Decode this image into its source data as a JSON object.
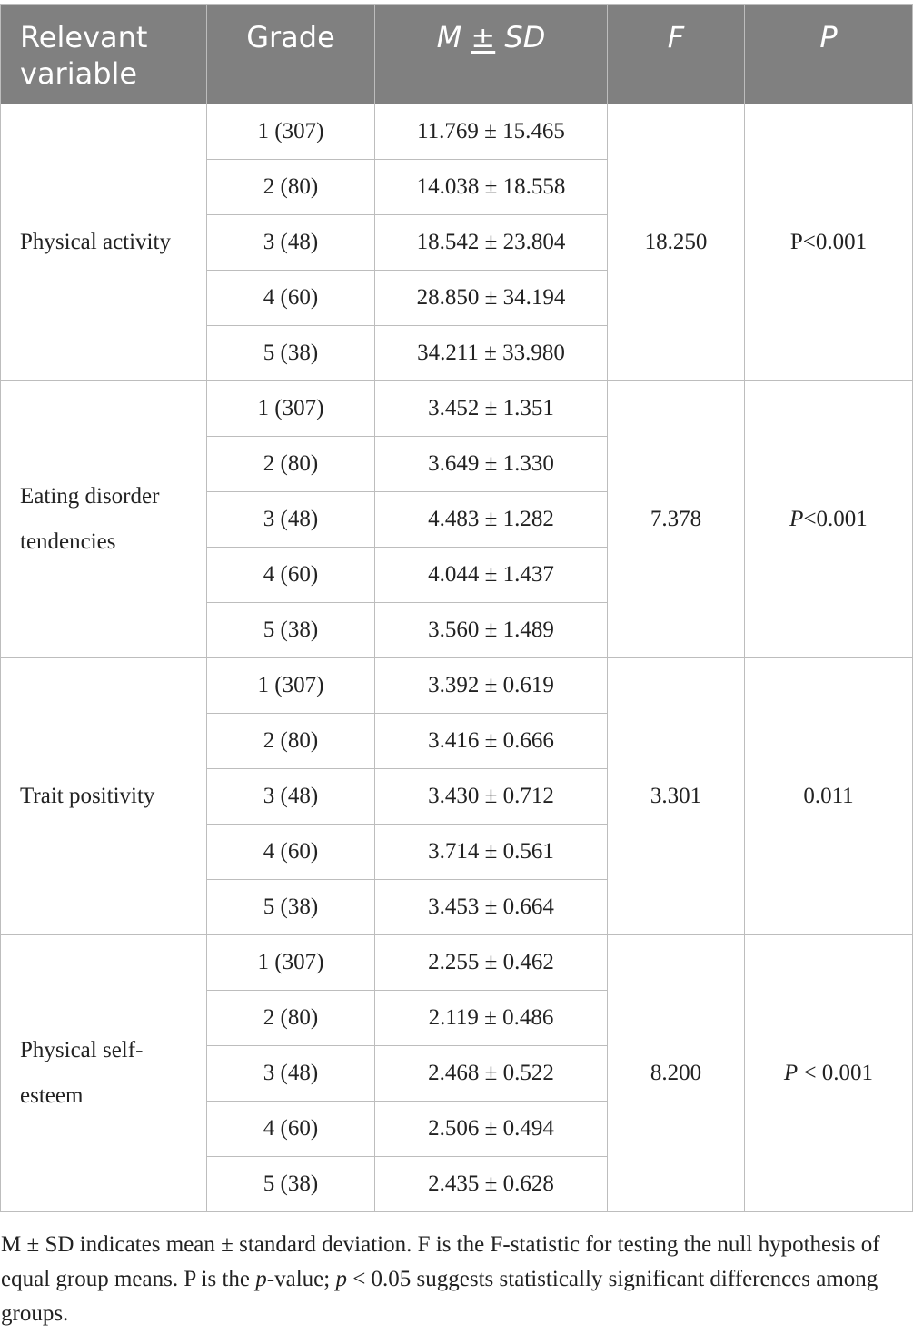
{
  "table": {
    "headers": {
      "variable": "Relevant variable",
      "grade": "Grade",
      "msd_m": "M ",
      "msd_pm": "±",
      "msd_sd": " SD",
      "f": "F",
      "p": "P"
    },
    "groups": [
      {
        "name": "Physical activity",
        "f": "18.250",
        "p_prefix": "P<0.001",
        "p_suffix": "",
        "rows": [
          {
            "grade": "1 (307)",
            "msd": "11.769 ± 15.465"
          },
          {
            "grade": "2 (80)",
            "msd": "14.038 ± 18.558"
          },
          {
            "grade": "3 (48)",
            "msd": "18.542 ± 23.804"
          },
          {
            "grade": "4 (60)",
            "msd": "28.850 ± 34.194"
          },
          {
            "grade": "5 (38)",
            "msd": "34.211 ± 33.980"
          }
        ]
      },
      {
        "name": "Eating disorder tendencies",
        "f": "7.378",
        "p_italic": "P",
        "p_suffix": "<0.001",
        "rows": [
          {
            "grade": "1 (307)",
            "msd": "3.452 ± 1.351"
          },
          {
            "grade": "2 (80)",
            "msd": "3.649 ± 1.330"
          },
          {
            "grade": "3 (48)",
            "msd": "4.483 ± 1.282"
          },
          {
            "grade": "4 (60)",
            "msd": "4.044 ± 1.437"
          },
          {
            "grade": "5 (38)",
            "msd": "3.560 ± 1.489"
          }
        ]
      },
      {
        "name": "Trait positivity",
        "f": "3.301",
        "p_prefix": "0.011",
        "p_suffix": "",
        "rows": [
          {
            "grade": "1 (307)",
            "msd": "3.392 ± 0.619"
          },
          {
            "grade": "2 (80)",
            "msd": "3.416 ± 0.666"
          },
          {
            "grade": "3 (48)",
            "msd": "3.430 ± 0.712"
          },
          {
            "grade": "4 (60)",
            "msd": "3.714 ± 0.561"
          },
          {
            "grade": "5 (38)",
            "msd": "3.453 ± 0.664"
          }
        ]
      },
      {
        "name": "Physical self-esteem",
        "f": "8.200",
        "p_italic": "P",
        "p_suffix": " < 0.001",
        "rows": [
          {
            "grade": "1 (307)",
            "msd": "2.255 ± 0.462"
          },
          {
            "grade": "2 (80)",
            "msd": "2.119 ± 0.486"
          },
          {
            "grade": "3 (48)",
            "msd": "2.468 ± 0.522"
          },
          {
            "grade": "4 (60)",
            "msd": "2.506 ± 0.494"
          },
          {
            "grade": "5 (38)",
            "msd": "2.435 ± 0.628"
          }
        ]
      }
    ]
  },
  "footnote": {
    "part1": "M ± SD indicates mean ± standard deviation. F is the F-statistic for testing the null hypothesis of equal group means. P is the ",
    "p_italic": "p",
    "part2": "-value; ",
    "p_italic2": "p",
    "part3": " < 0.05 suggests statistically significant differences among groups."
  }
}
